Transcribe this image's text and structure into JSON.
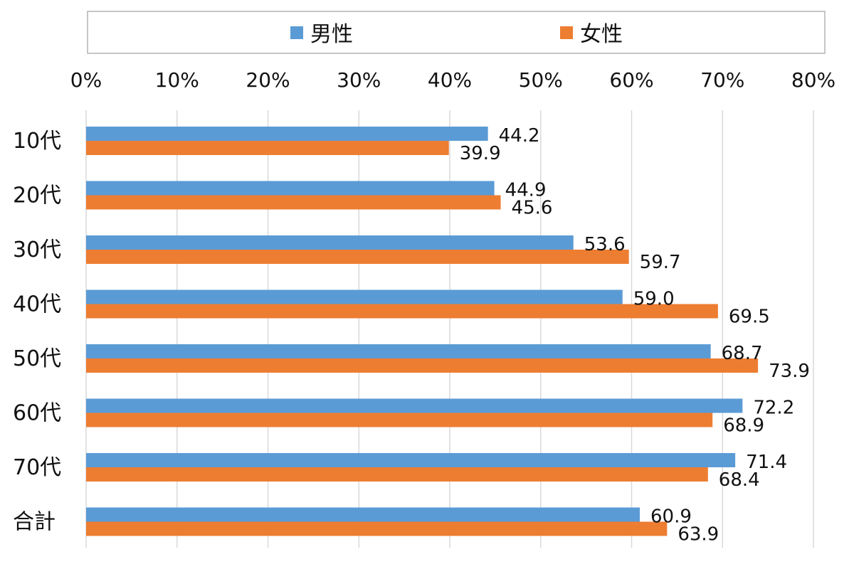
{
  "chart_data": {
    "type": "bar",
    "orientation": "horizontal",
    "categories": [
      "10代",
      "20代",
      "30代",
      "40代",
      "50代",
      "60代",
      "70代",
      "合計"
    ],
    "series": [
      {
        "name": "男性",
        "color": "#5B9BD5",
        "values": [
          44.2,
          44.9,
          53.6,
          59.0,
          68.7,
          72.2,
          71.4,
          60.9
        ]
      },
      {
        "name": "女性",
        "color": "#ED7D31",
        "values": [
          39.9,
          45.6,
          59.7,
          69.5,
          73.9,
          68.9,
          68.4,
          63.9
        ]
      }
    ],
    "xlim": [
      0,
      80
    ],
    "xticks": [
      "0%",
      "10%",
      "20%",
      "30%",
      "40%",
      "50%",
      "60%",
      "70%",
      "80%"
    ],
    "xaxis_position": "top",
    "grid": true,
    "legend_position": "top",
    "data_labels": true
  }
}
